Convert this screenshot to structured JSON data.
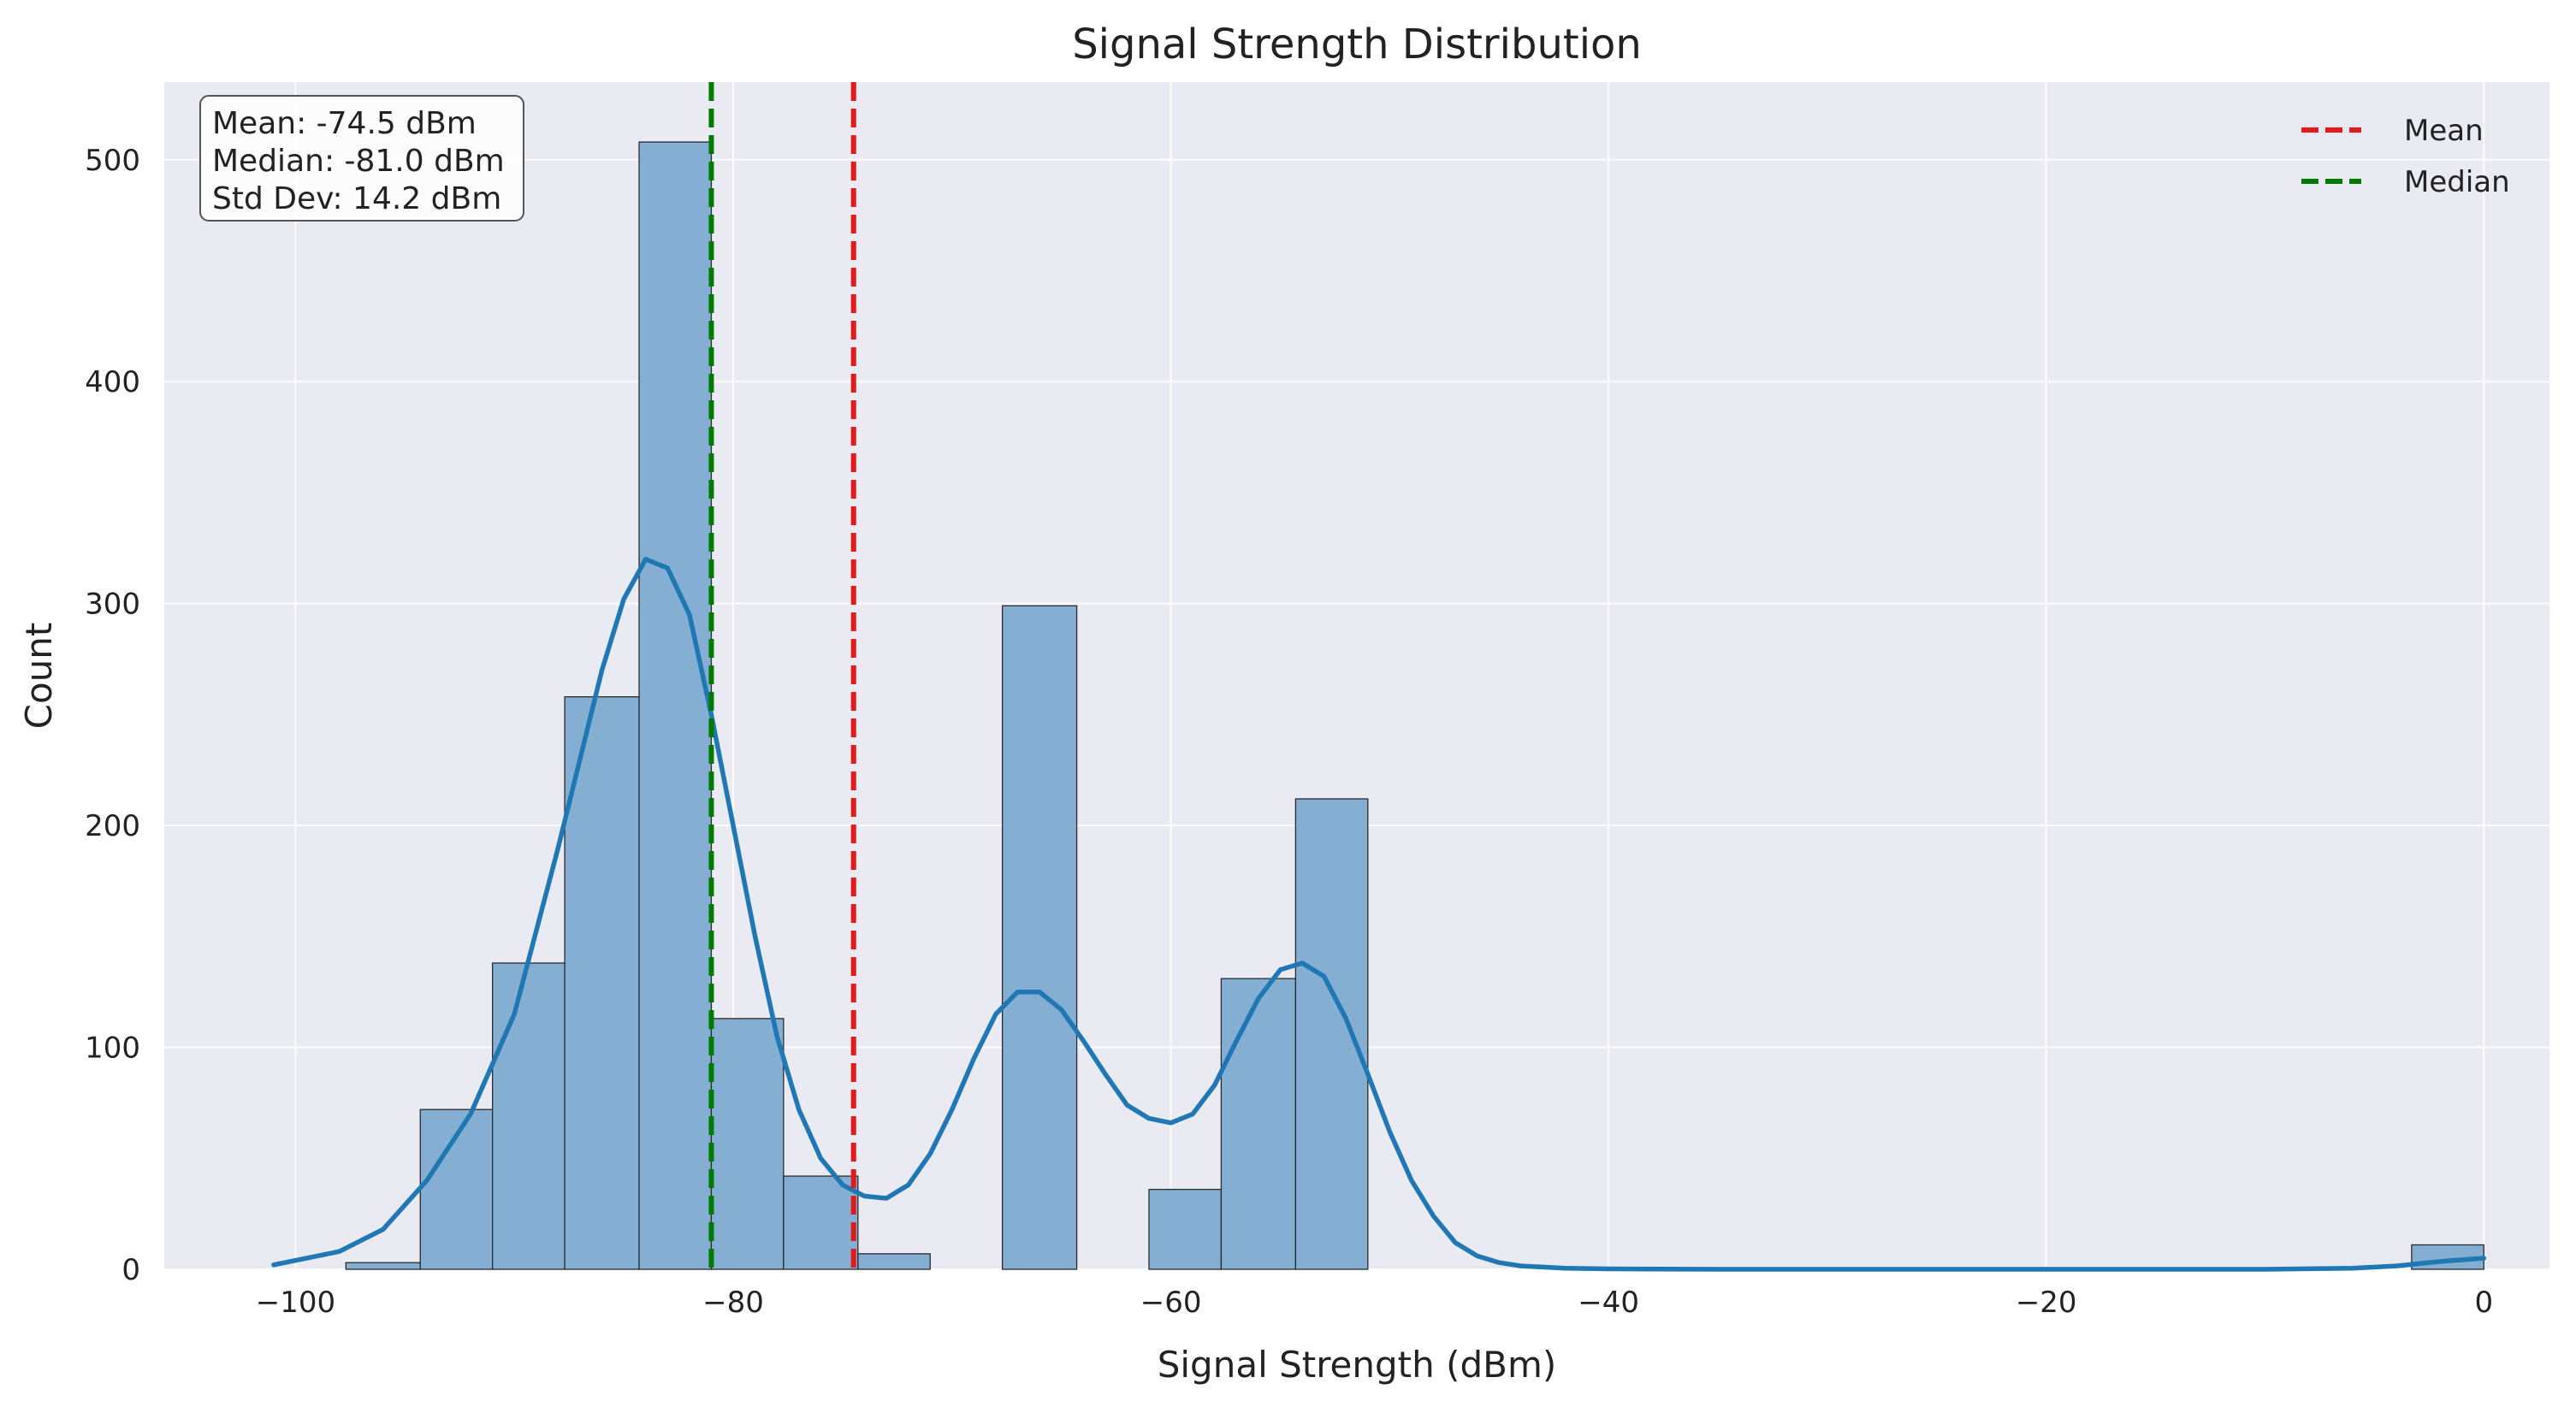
{
  "chart_data": {
    "type": "bar",
    "title": "Signal Strength Distribution",
    "xlabel": "Signal Strength (dBm)",
    "ylabel": "Count",
    "xlim": [
      -106,
      3
    ],
    "ylim": [
      0,
      535
    ],
    "xticks": [
      -100,
      -80,
      -60,
      -40,
      -20,
      0
    ],
    "yticks": [
      0,
      100,
      200,
      300,
      400,
      500
    ],
    "grid": true,
    "legend_position": "top-right",
    "bins": [
      {
        "x0": -101.0,
        "x1": -97.7,
        "count": 0
      },
      {
        "x0": -97.7,
        "x1": -94.3,
        "count": 3
      },
      {
        "x0": -94.3,
        "x1": -91.0,
        "count": 72
      },
      {
        "x0": -91.0,
        "x1": -87.7,
        "count": 138
      },
      {
        "x0": -87.7,
        "x1": -84.3,
        "count": 258
      },
      {
        "x0": -84.3,
        "x1": -81.0,
        "count": 508
      },
      {
        "x0": -81.0,
        "x1": -77.7,
        "count": 113
      },
      {
        "x0": -77.7,
        "x1": -74.3,
        "count": 42
      },
      {
        "x0": -74.3,
        "x1": -71.0,
        "count": 7
      },
      {
        "x0": -71.0,
        "x1": -67.7,
        "count": 0
      },
      {
        "x0": -67.7,
        "x1": -64.3,
        "count": 299
      },
      {
        "x0": -64.3,
        "x1": -61.0,
        "count": 0
      },
      {
        "x0": -61.0,
        "x1": -57.7,
        "count": 36
      },
      {
        "x0": -57.7,
        "x1": -54.3,
        "count": 131
      },
      {
        "x0": -54.3,
        "x1": -51.0,
        "count": 212
      },
      {
        "x0": -3.3,
        "x1": 0.0,
        "count": 11
      }
    ],
    "kde": {
      "x": [
        -101,
        -98,
        -96,
        -94,
        -92,
        -90,
        -88,
        -86,
        -85,
        -84,
        -83,
        -82,
        -81,
        -80,
        -79,
        -78,
        -77,
        -76,
        -75,
        -74,
        -73,
        -72,
        -71,
        -70,
        -69,
        -68,
        -67,
        -66,
        -65,
        -64,
        -63,
        -62,
        -61,
        -60,
        -59,
        -58,
        -57,
        -56,
        -55,
        -54,
        -53,
        -52,
        -51,
        -50,
        -49,
        -48,
        -47,
        -46,
        -45,
        -44,
        -43,
        -42,
        -40,
        -35,
        -30,
        -20,
        -10,
        -6,
        -4,
        -2,
        0
      ],
      "y": [
        2,
        8,
        18,
        40,
        70,
        115,
        190,
        270,
        302,
        320,
        316,
        295,
        250,
        200,
        150,
        105,
        72,
        50,
        38,
        33,
        32,
        38,
        52,
        72,
        95,
        115,
        125,
        125,
        117,
        103,
        88,
        74,
        68,
        66,
        70,
        83,
        103,
        122,
        135,
        138,
        132,
        113,
        88,
        62,
        40,
        24,
        12,
        6,
        3,
        1.5,
        1,
        0.5,
        0.2,
        0,
        0,
        0,
        0,
        0.5,
        1.5,
        3.5,
        5
      ]
    },
    "lines": [
      {
        "name": "Mean",
        "x": -74.5,
        "color": "#e31a1c"
      },
      {
        "name": "Median",
        "x": -81.0,
        "color": "#007a00"
      }
    ],
    "stats_box": [
      "Mean: -74.5 dBm",
      "Median: -81.0 dBm",
      "Std Dev: 14.2 dBm"
    ],
    "colors": {
      "background": "#eaeaf2",
      "grid": "#ffffff",
      "bar_fill": "#84afd3",
      "bar_edge": "#2b2b2b",
      "kde": "#1f77b4"
    }
  }
}
